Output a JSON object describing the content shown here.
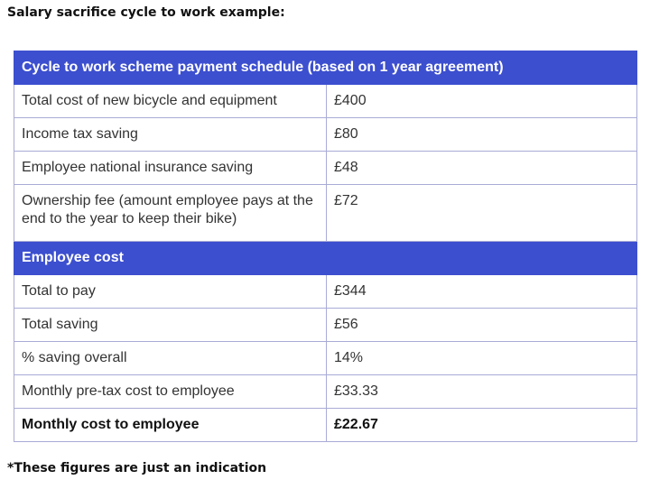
{
  "title": "Salary sacrifice cycle to work example:",
  "table": {
    "header": "Cycle to work scheme payment schedule (based on 1 year agreement)",
    "rows": [
      {
        "label": "Total cost of new bicycle and equipment",
        "value": "£400"
      },
      {
        "label": "Income tax saving",
        "value": "£80"
      },
      {
        "label": "Employee national insurance saving",
        "value": "£48"
      },
      {
        "label": "Ownership fee (amount employee pays at the end to the year to keep their bike)",
        "value": "£72"
      }
    ],
    "section2_header": "Employee cost",
    "rows2": [
      {
        "label": "Total to pay",
        "value": "£344"
      },
      {
        "label": "Total saving",
        "value": "£56"
      },
      {
        "label": "% saving overall",
        "value": "14%"
      },
      {
        "label": "Monthly pre-tax cost to employee",
        "value": "£33.33"
      },
      {
        "label": "Monthly cost to employee",
        "value": "£22.67"
      }
    ]
  },
  "note": "*These figures are just an indication",
  "colors": {
    "header_bg": "#3c4fcf",
    "border": "#a9abd6"
  }
}
